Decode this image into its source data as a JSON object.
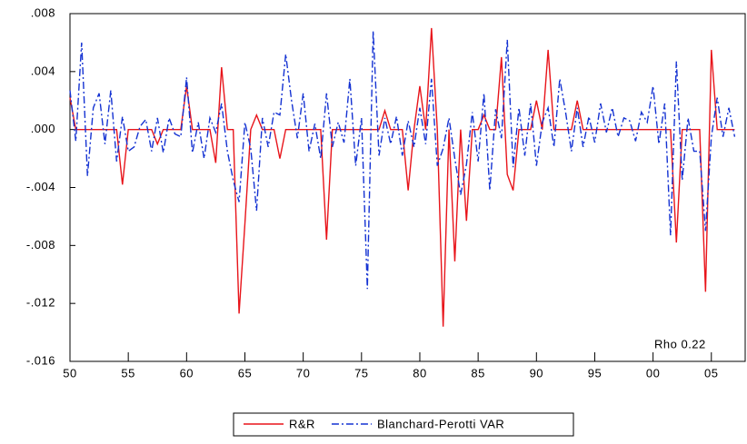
{
  "chart_data": {
    "type": "line",
    "annotation": "Rho 0.22",
    "x": [
      1950,
      1950.5,
      1951,
      1951.5,
      1952,
      1952.5,
      1953,
      1953.5,
      1954,
      1954.5,
      1955,
      1955.5,
      1956,
      1956.5,
      1957,
      1957.5,
      1958,
      1958.5,
      1959,
      1959.5,
      1960,
      1960.5,
      1961,
      1961.5,
      1962,
      1962.5,
      1963,
      1963.5,
      1964,
      1964.5,
      1965,
      1965.5,
      1966,
      1966.5,
      1967,
      1967.5,
      1968,
      1968.5,
      1969,
      1969.5,
      1970,
      1970.5,
      1971,
      1971.5,
      1972,
      1972.5,
      1973,
      1973.5,
      1974,
      1974.5,
      1975,
      1975.5,
      1976,
      1976.5,
      1977,
      1977.5,
      1978,
      1978.5,
      1979,
      1979.5,
      1980,
      1980.5,
      1981,
      1981.5,
      1982,
      1982.5,
      1983,
      1983.5,
      1984,
      1984.5,
      1985,
      1985.5,
      1986,
      1986.5,
      1987,
      1987.5,
      1988,
      1988.5,
      1989,
      1989.5,
      1990,
      1990.5,
      1991,
      1991.5,
      1992,
      1992.5,
      1993,
      1993.5,
      1994,
      1994.5,
      1995,
      1995.5,
      1996,
      1996.5,
      1997,
      1997.5,
      1998,
      1998.5,
      1999,
      1999.5,
      2000,
      2000.5,
      2001,
      2001.5,
      2002,
      2002.5,
      2003,
      2003.5,
      2004,
      2004.5,
      2005,
      2005.5,
      2006,
      2006.5,
      2007
    ],
    "series": [
      {
        "name": "R&R",
        "color": "#e8141a",
        "dash": "none",
        "values": [
          0.0022,
          0,
          0,
          0,
          0,
          0,
          0,
          0,
          0,
          -0.0038,
          0,
          0,
          0,
          0,
          0,
          -0.001,
          0,
          0,
          0,
          0,
          0.003,
          0,
          0,
          0,
          0,
          -0.0023,
          0.0043,
          0,
          0,
          -0.0127,
          -0.0065,
          0,
          0.001,
          0,
          0,
          0,
          -0.002,
          0,
          0,
          0,
          0,
          0,
          0,
          0,
          -0.0076,
          0,
          0,
          0,
          0,
          0,
          0,
          0,
          0,
          0,
          0.0013,
          0,
          0,
          0,
          -0.0042,
          0,
          0.003,
          0,
          0.007,
          0,
          -0.0136,
          0,
          -0.0091,
          0,
          -0.0063,
          0,
          0,
          0.001,
          0,
          0,
          0.005,
          -0.0031,
          -0.0042,
          0,
          0,
          0,
          0.002,
          0,
          0.0055,
          0,
          0,
          0,
          0,
          0.002,
          0,
          0,
          0,
          0,
          0,
          0,
          0,
          0,
          0,
          0,
          0,
          0,
          0,
          0,
          0,
          0,
          -0.0078,
          0,
          0,
          0,
          0,
          -0.0112,
          0.0055,
          0,
          0,
          0,
          0
        ]
      },
      {
        "name": "Blanchard-Perotti VAR",
        "color": "#1432d2",
        "dash": "8,3,2,3",
        "values": [
          0.0027,
          -0.0008,
          0.006,
          -0.0032,
          0.0015,
          0.0025,
          -0.001,
          0.0027,
          -0.0022,
          0.0009,
          -0.0015,
          -0.0012,
          0.0002,
          0.0007,
          -0.0015,
          0.0008,
          -0.0016,
          0.0008,
          -0.0003,
          -0.0005,
          0.0036,
          -0.0016,
          0.0005,
          -0.002,
          0.0008,
          -0.0002,
          0.0018,
          -0.0015,
          -0.0035,
          -0.005,
          0.0005,
          -0.0013,
          -0.0056,
          0.0008,
          -0.0012,
          0.0012,
          0.001,
          0.0052,
          0.002,
          -0.0006,
          0.0025,
          -0.0015,
          0.0004,
          -0.002,
          0.0025,
          -0.0012,
          0.0005,
          -0.0009,
          0.0035,
          -0.0025,
          0.0008,
          -0.011,
          0.0068,
          -0.0018,
          0.0008,
          -0.001,
          0.0009,
          -0.0018,
          0.0006,
          -0.0012,
          0.0015,
          -0.001,
          0.0035,
          -0.0025,
          -0.0013,
          0.0008,
          -0.002,
          -0.0045,
          -0.0024,
          0.0012,
          -0.0022,
          0.0025,
          -0.0042,
          0.0014,
          -0.0006,
          0.0062,
          -0.0026,
          0.0015,
          -0.0018,
          0.0018,
          -0.0025,
          0.0005,
          0.0015,
          -0.0012,
          0.0035,
          0.0012,
          -0.0015,
          0.0015,
          -0.0012,
          0.0009,
          -0.0009,
          0.0018,
          -0.0002,
          0.0015,
          -0.0005,
          0.0008,
          0.0006,
          -0.0008,
          0.0012,
          0.0005,
          0.003,
          -0.001,
          0.0018,
          -0.0073,
          0.0047,
          -0.0035,
          0.0008,
          -0.0015,
          -0.0015,
          -0.007,
          -0.0005,
          0.0022,
          -0.0005,
          0.0015,
          -0.0005
        ]
      }
    ],
    "xlim": [
      1950,
      2007.9
    ],
    "ylim": [
      -0.016,
      0.008
    ],
    "xticks": [
      {
        "value": 1950,
        "label": "50"
      },
      {
        "value": 1955,
        "label": "55"
      },
      {
        "value": 1960,
        "label": "60"
      },
      {
        "value": 1965,
        "label": "65"
      },
      {
        "value": 1970,
        "label": "70"
      },
      {
        "value": 1975,
        "label": "75"
      },
      {
        "value": 1980,
        "label": "80"
      },
      {
        "value": 1985,
        "label": "85"
      },
      {
        "value": 1990,
        "label": "90"
      },
      {
        "value": 1995,
        "label": "95"
      },
      {
        "value": 2000,
        "label": "00"
      },
      {
        "value": 2005,
        "label": "05"
      }
    ],
    "yticks": [
      {
        "value": -0.016,
        "label": "-.016"
      },
      {
        "value": -0.012,
        "label": "-.012"
      },
      {
        "value": -0.008,
        "label": "-.008"
      },
      {
        "value": -0.004,
        "label": "-.004"
      },
      {
        "value": 0,
        "label": ".000"
      },
      {
        "value": 0.004,
        "label": ".004"
      },
      {
        "value": 0.008,
        "label": ".008"
      }
    ],
    "legend": "bottom"
  }
}
